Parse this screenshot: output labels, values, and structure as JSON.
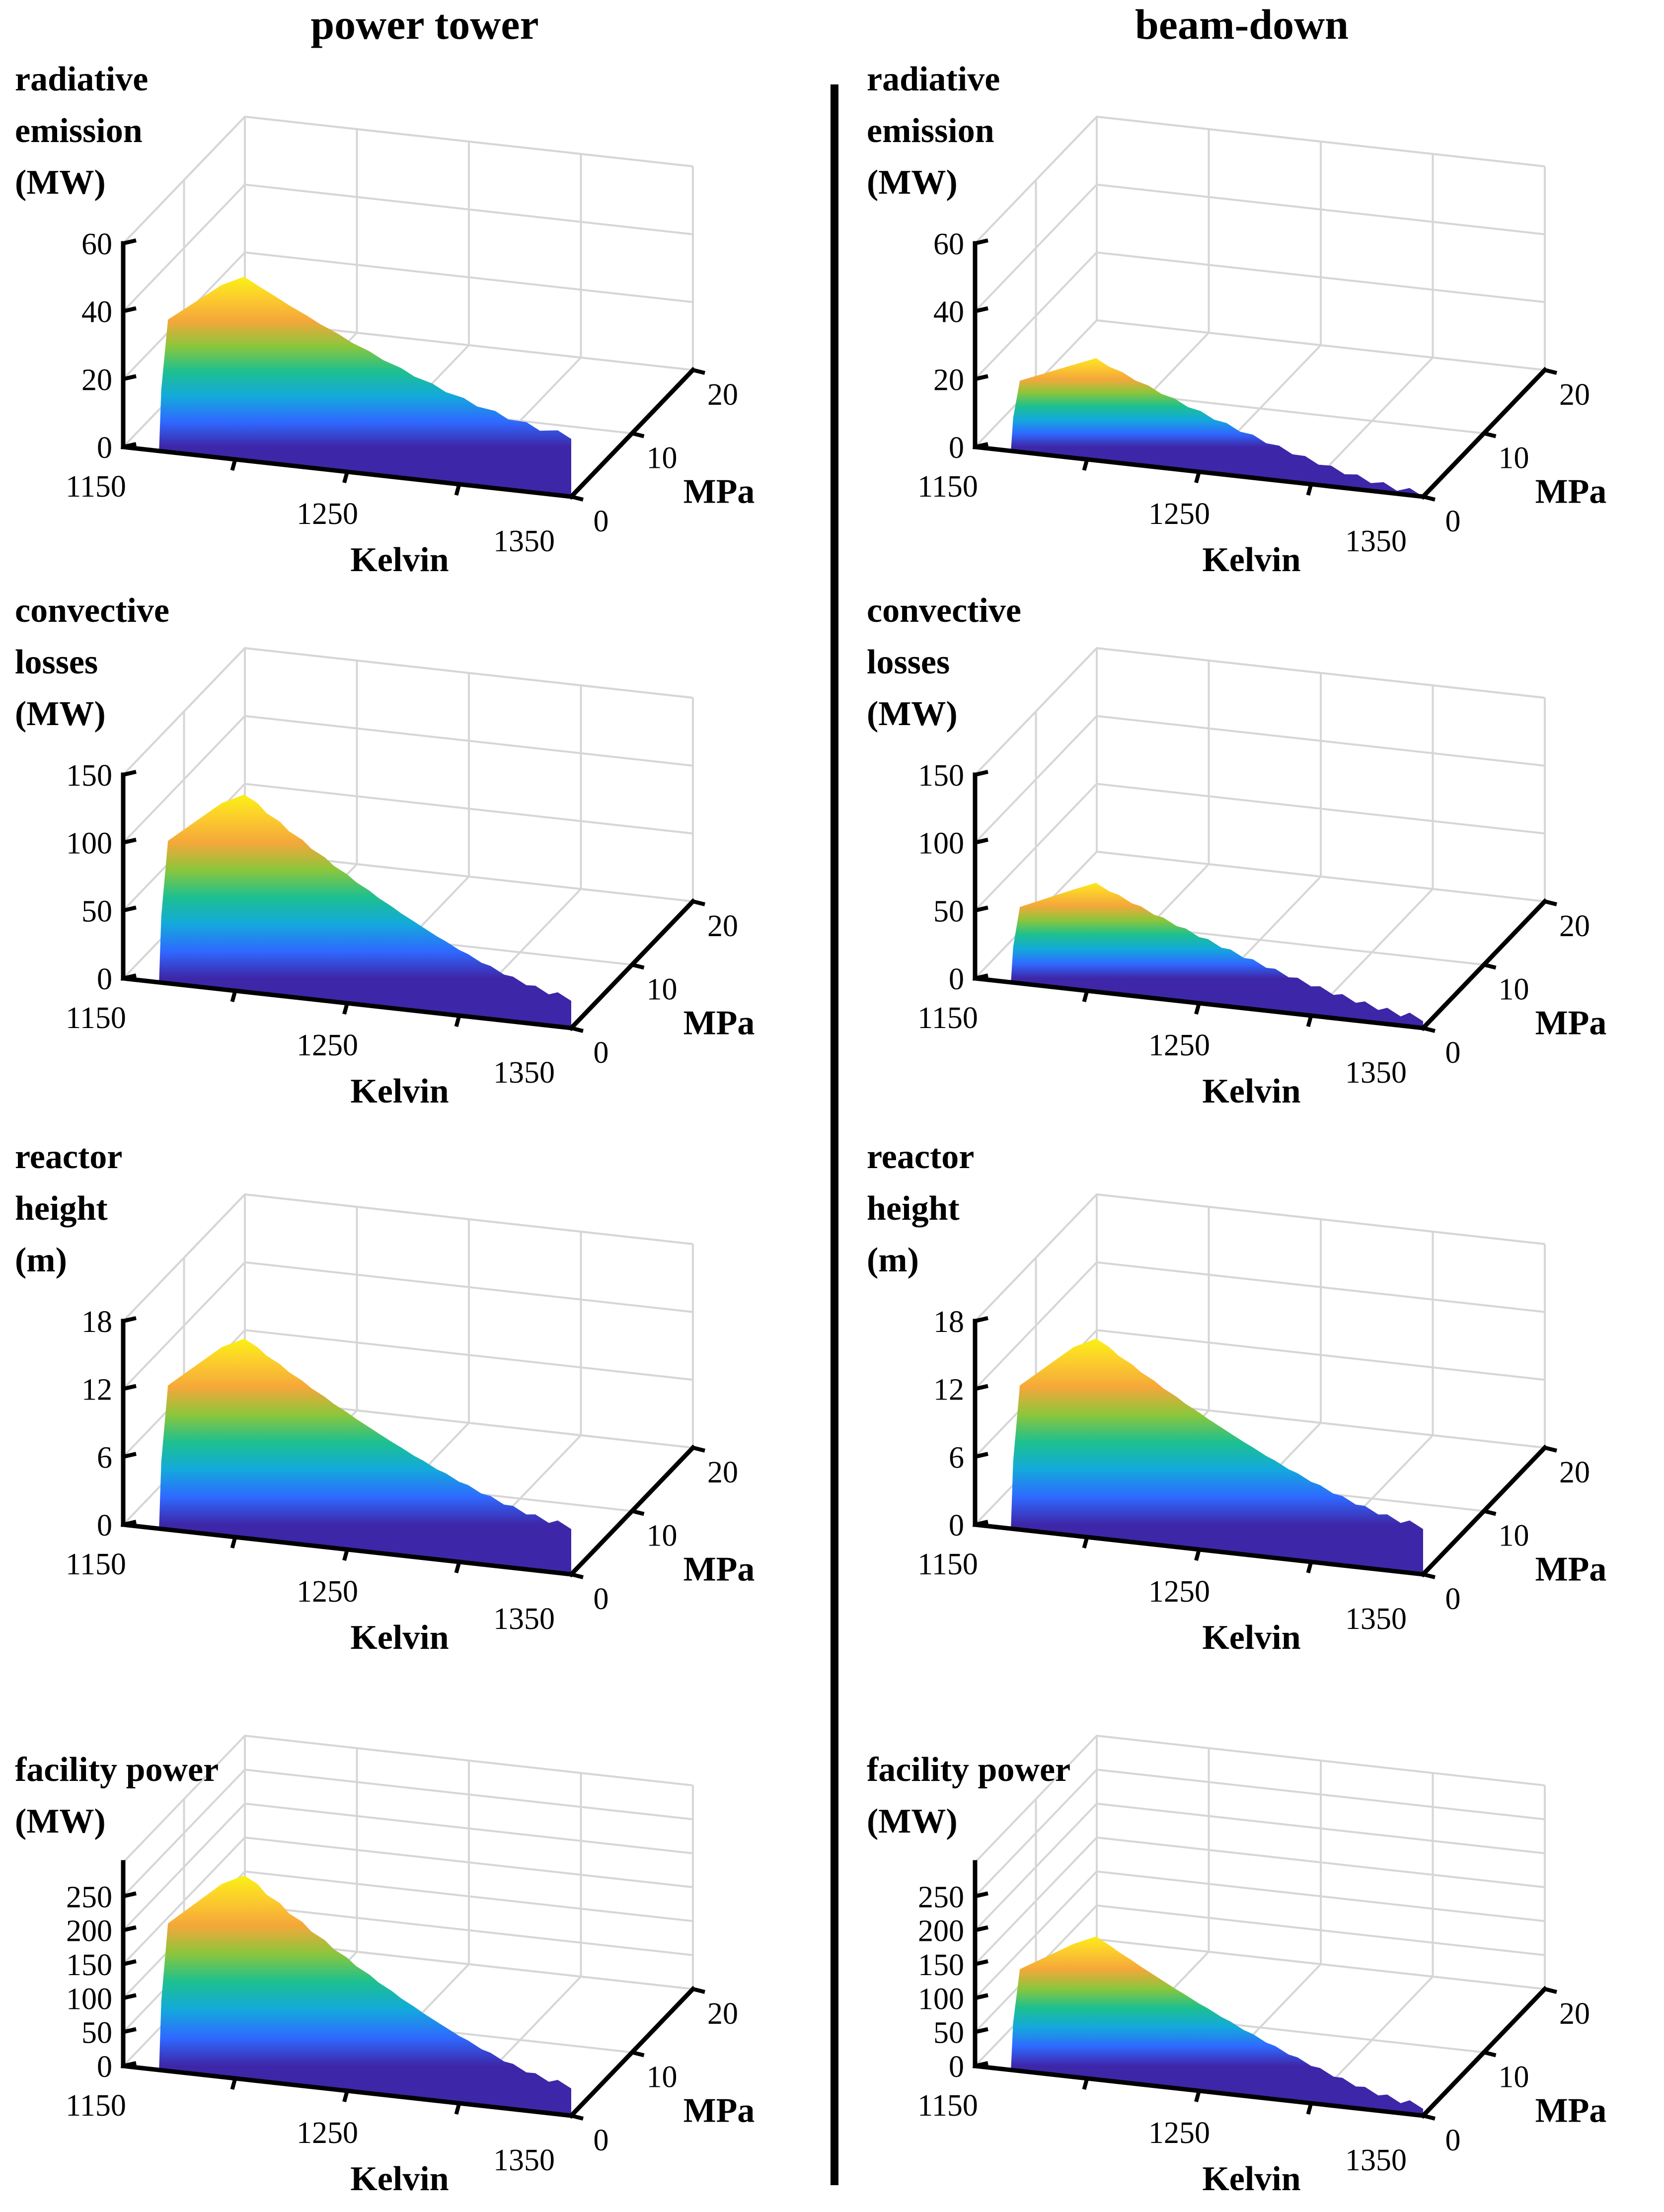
{
  "figure": {
    "column_titles": [
      "power tower",
      "beam-down"
    ]
  },
  "colormap": [
    "#3e26a8",
    "#2f69ff",
    "#13a9dc",
    "#1dc08f",
    "#8bc63b",
    "#f5a73a",
    "#fcd02b",
    "#f9fb0e"
  ],
  "chart_data": [
    {
      "type": "surface",
      "column": "power tower",
      "row": 0,
      "zlabel": [
        "radiative",
        "emission",
        "(MW)"
      ],
      "xlabel": "Kelvin",
      "ylabel": "MPa",
      "xlim": [
        1150,
        1350
      ],
      "ylim": [
        0,
        20
      ],
      "zlim": [
        0,
        60
      ],
      "xticks": [
        1150,
        1250,
        1350
      ],
      "yticks": [
        0,
        10,
        20
      ],
      "zticks": [
        0,
        20,
        40,
        60
      ],
      "z_at_front_edge": 0,
      "z_at_peak": 52,
      "z_at_right_end": 17,
      "steps": 10
    },
    {
      "type": "surface",
      "column": "beam-down",
      "row": 0,
      "zlabel": [
        "radiative",
        "emission",
        "(MW)"
      ],
      "xlabel": "Kelvin",
      "ylabel": "MPa",
      "xlim": [
        1150,
        1350
      ],
      "ylim": [
        0,
        20
      ],
      "zlim": [
        0,
        60
      ],
      "xticks": [
        1150,
        1250,
        1350
      ],
      "yticks": [
        0,
        10,
        20
      ],
      "zticks": [
        0,
        20,
        40,
        60
      ],
      "z_at_front_edge": 0,
      "z_at_peak": 28,
      "z_at_right_end": 0,
      "steps": 12
    },
    {
      "type": "surface",
      "column": "power tower",
      "row": 1,
      "zlabel": [
        "convective",
        "losses",
        "(MW)"
      ],
      "xlabel": "Kelvin",
      "ylabel": "MPa",
      "xlim": [
        1150,
        1350
      ],
      "ylim": [
        0,
        20
      ],
      "zlim": [
        0,
        150
      ],
      "xticks": [
        1150,
        1250,
        1350
      ],
      "yticks": [
        0,
        10,
        20
      ],
      "zticks": [
        0,
        50,
        100,
        150
      ],
      "z_at_front_edge": 0,
      "z_at_peak": 140,
      "z_at_right_end": 20,
      "steps": 14
    },
    {
      "type": "surface",
      "column": "beam-down",
      "row": 1,
      "zlabel": [
        "convective",
        "losses",
        "(MW)"
      ],
      "xlabel": "Kelvin",
      "ylabel": "MPa",
      "xlim": [
        1150,
        1350
      ],
      "ylim": [
        0,
        20
      ],
      "zlim": [
        0,
        150
      ],
      "xticks": [
        1150,
        1250,
        1350
      ],
      "yticks": [
        0,
        10,
        20
      ],
      "zticks": [
        0,
        50,
        100,
        150
      ],
      "z_at_front_edge": 0,
      "z_at_peak": 75,
      "z_at_right_end": 5,
      "steps": 14
    },
    {
      "type": "surface",
      "column": "power tower",
      "row": 2,
      "zlabel": [
        "reactor",
        "height",
        "(m)"
      ],
      "xlabel": "Kelvin",
      "ylabel": "MPa",
      "xlim": [
        1150,
        1350
      ],
      "ylim": [
        0,
        20
      ],
      "zlim": [
        0,
        18
      ],
      "xticks": [
        1150,
        1250,
        1350
      ],
      "yticks": [
        0,
        10,
        20
      ],
      "zticks": [
        0,
        6,
        12,
        18
      ],
      "z_at_front_edge": 0,
      "z_at_peak": 17,
      "z_at_right_end": 4,
      "steps": 14
    },
    {
      "type": "surface",
      "column": "beam-down",
      "row": 2,
      "zlabel": [
        "reactor",
        "height",
        "(m)"
      ],
      "xlabel": "Kelvin",
      "ylabel": "MPa",
      "xlim": [
        1150,
        1350
      ],
      "ylim": [
        0,
        20
      ],
      "zlim": [
        0,
        18
      ],
      "xticks": [
        1150,
        1250,
        1350
      ],
      "yticks": [
        0,
        10,
        20
      ],
      "zticks": [
        0,
        6,
        12,
        18
      ],
      "z_at_front_edge": 0,
      "z_at_peak": 17,
      "z_at_right_end": 4,
      "steps": 14
    },
    {
      "type": "surface",
      "column": "power tower",
      "row": 3,
      "zlabel": [
        "facility power",
        "(MW)"
      ],
      "xlabel": "Kelvin",
      "ylabel": "MPa",
      "xlim": [
        1150,
        1350
      ],
      "ylim": [
        0,
        20
      ],
      "zlim": [
        0,
        300
      ],
      "xticks": [
        1150,
        1250,
        1350
      ],
      "yticks": [
        0,
        10,
        20
      ],
      "zticks": [
        0,
        50,
        100,
        150,
        200,
        250
      ],
      "z_at_front_edge": 0,
      "z_at_peak": 290,
      "z_at_right_end": 40,
      "steps": 14
    },
    {
      "type": "surface",
      "column": "beam-down",
      "row": 3,
      "zlabel": [
        "facility power",
        "(MW)"
      ],
      "xlabel": "Kelvin",
      "ylabel": "MPa",
      "xlim": [
        1150,
        1350
      ],
      "ylim": [
        0,
        20
      ],
      "zlim": [
        0,
        300
      ],
      "xticks": [
        1150,
        1250,
        1350
      ],
      "yticks": [
        0,
        10,
        20
      ],
      "zticks": [
        0,
        50,
        100,
        150,
        200,
        250
      ],
      "z_at_front_edge": 0,
      "z_at_peak": 200,
      "z_at_right_end": 10,
      "steps": 14
    }
  ]
}
